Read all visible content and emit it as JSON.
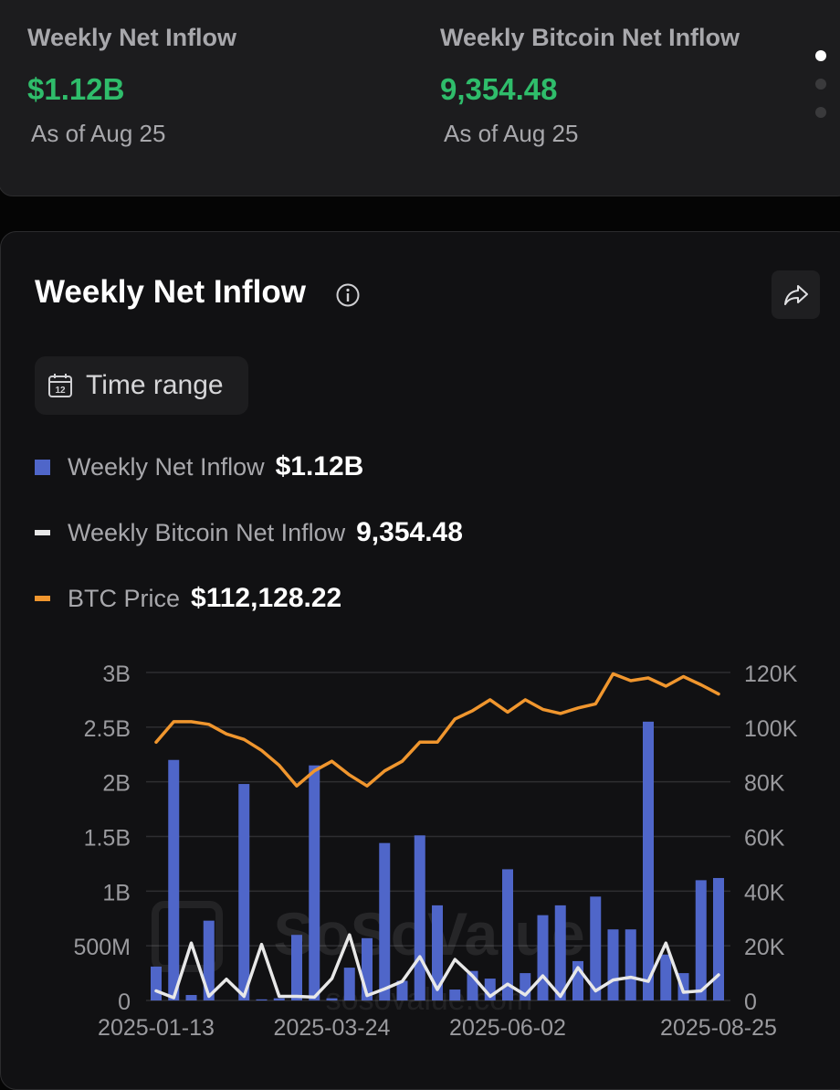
{
  "summary": {
    "items": [
      {
        "label": "Weekly Net Inflow",
        "value": "$1.12B",
        "as_of": "As of Aug 25"
      },
      {
        "label": "Weekly Bitcoin Net Inflow",
        "value": "9,354.48",
        "as_of": "As of Aug 25"
      }
    ],
    "pagination": {
      "count": 3,
      "active": 0
    }
  },
  "card": {
    "title": "Weekly Net Inflow",
    "info_icon": "info-circle-icon",
    "share_icon": "share-arrow-icon",
    "time_range_label": "Time range",
    "time_range_icon": "calendar-icon"
  },
  "legend": [
    {
      "name": "Weekly Net Inflow",
      "value": "$1.12B",
      "color": "#4f66c9",
      "shape": "square"
    },
    {
      "name": "Weekly Bitcoin Net Inflow",
      "value": "9,354.48",
      "color": "#e8e8e8",
      "shape": "dash"
    },
    {
      "name": "BTC Price",
      "value": "$112,128.22",
      "color": "#f0962e",
      "shape": "dash"
    }
  ],
  "watermark": {
    "brand": "SoSoValue",
    "site": "sosovalue.com"
  },
  "chart_data": {
    "type": "bar",
    "title": "Weekly Net Inflow",
    "x": [
      "2025-01-13",
      "2025-01-20",
      "2025-01-27",
      "2025-02-03",
      "2025-02-10",
      "2025-02-17",
      "2025-02-24",
      "2025-03-03",
      "2025-03-10",
      "2025-03-17",
      "2025-03-24",
      "2025-03-31",
      "2025-04-07",
      "2025-04-14",
      "2025-04-21",
      "2025-04-28",
      "2025-05-05",
      "2025-05-12",
      "2025-05-19",
      "2025-05-26",
      "2025-06-02",
      "2025-06-09",
      "2025-06-16",
      "2025-06-23",
      "2025-06-30",
      "2025-07-07",
      "2025-07-14",
      "2025-07-21",
      "2025-07-28",
      "2025-08-04",
      "2025-08-11",
      "2025-08-18",
      "2025-08-25"
    ],
    "x_tick_labels": [
      "2025-01-13",
      "2025-03-24",
      "2025-06-02",
      "2025-08-25"
    ],
    "y_left": {
      "ticks": [
        "0",
        "500M",
        "1B",
        "1.5B",
        "2B",
        "2.5B",
        "3B"
      ],
      "range": [
        0,
        3000000000
      ]
    },
    "y_right": {
      "ticks": [
        "0",
        "20K",
        "40K",
        "60K",
        "80K",
        "100K",
        "120K"
      ],
      "range": [
        0,
        120000
      ]
    },
    "grid": true,
    "series": [
      {
        "name": "Weekly Net Inflow",
        "type": "bar",
        "axis": "left",
        "color": "#4f66c9",
        "values": [
          310000000,
          2200000000,
          50000000,
          730000000,
          0,
          1980000000,
          10000000,
          20000000,
          600000000,
          2150000000,
          20000000,
          300000000,
          570000000,
          1440000000,
          180000000,
          1510000000,
          870000000,
          100000000,
          270000000,
          200000000,
          1200000000,
          250000000,
          780000000,
          870000000,
          360000000,
          950000000,
          650000000,
          650000000,
          2550000000,
          420000000,
          250000000,
          1100000000,
          1120000000
        ]
      },
      {
        "name": "Weekly Bitcoin Net Inflow",
        "type": "line",
        "axis": "right",
        "color": "#e8e8e8",
        "values": [
          3500,
          1000,
          21000,
          1500,
          7800,
          1500,
          20500,
          1500,
          1500,
          1200,
          8000,
          24000,
          1800,
          4200,
          7000,
          16000,
          4000,
          15000,
          9000,
          1500,
          6000,
          2000,
          9000,
          1500,
          12000,
          3500,
          7500,
          8500,
          7000,
          21000,
          3000,
          3500,
          9354
        ]
      },
      {
        "name": "BTC Price",
        "type": "line",
        "axis": "right",
        "color": "#f0962e",
        "values": [
          94500,
          102000,
          102000,
          101000,
          97500,
          95500,
          91500,
          86000,
          78500,
          84000,
          87500,
          82500,
          78500,
          84000,
          87500,
          94500,
          94500,
          103000,
          106000,
          110000,
          105500,
          110000,
          106500,
          105000,
          107000,
          108500,
          119500,
          117000,
          118000,
          115000,
          118500,
          115500,
          112128
        ]
      }
    ],
    "watermark": "SoSoValue"
  }
}
